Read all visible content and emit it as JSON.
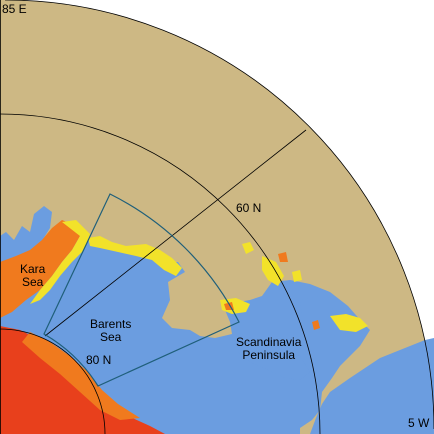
{
  "corner_labels": {
    "top_left": "85 E",
    "bottom_right": "5 W"
  },
  "graticule_labels": {
    "lat_60": "60 N",
    "lat_80": "80 N"
  },
  "regions": {
    "kara": {
      "line1": "Kara",
      "line2": "Sea"
    },
    "barents": {
      "line1": "Barents",
      "line2": "Sea"
    },
    "scandinavia": {
      "line1": "Scandinavia",
      "line2": "Peninsula"
    }
  },
  "colors": {
    "land": "#cdb884",
    "ocean": "#6b9de0",
    "ice_yellow": "#f2e22a",
    "ice_orange": "#f07a1e",
    "ice_red": "#e8401c",
    "grid_line": "#000000",
    "box_line": "#1f5f7a"
  }
}
